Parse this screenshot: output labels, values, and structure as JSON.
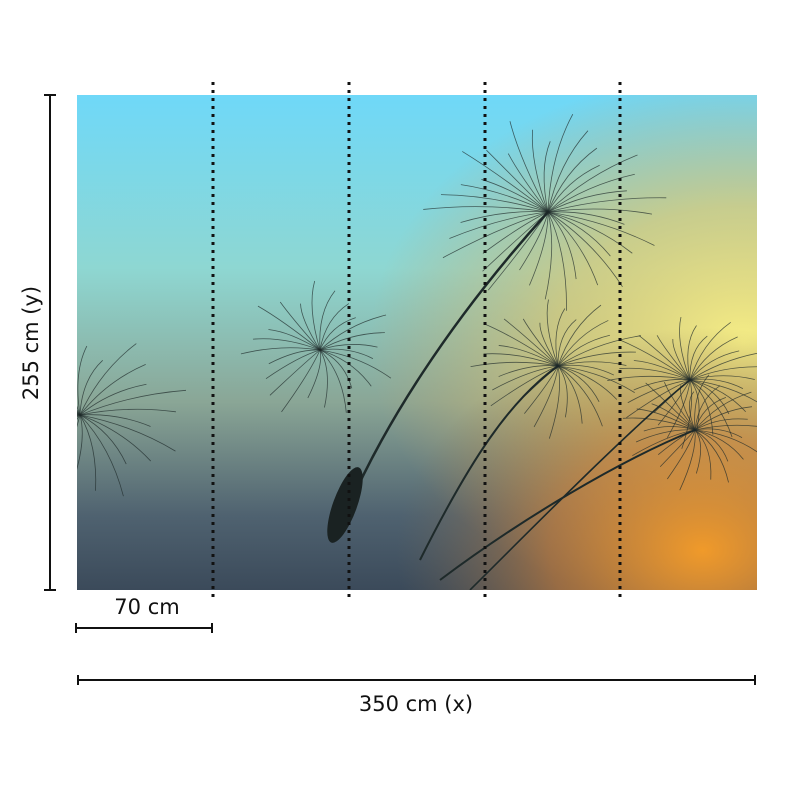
{
  "dimensions": {
    "height": "255 cm (y)",
    "panel_width": "70 cm",
    "width": "350 cm (x)"
  }
}
